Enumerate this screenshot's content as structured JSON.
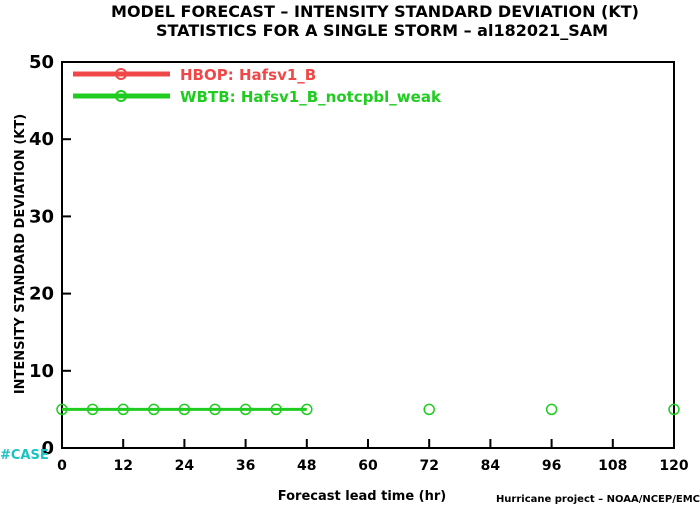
{
  "chart_data": {
    "type": "line",
    "title": "MODEL FORECAST – INTENSITY STANDARD DEVIATION (KT)",
    "subtitle": "STATISTICS FOR A SINGLE STORM – al182021_SAM",
    "xlabel": "Forecast lead time (hr)",
    "ylabel": "INTENSITY STANDARD DEVIATION (KT)",
    "xlim": [
      0,
      120
    ],
    "ylim": [
      0,
      50
    ],
    "x_ticks": [
      "0",
      "12",
      "24",
      "36",
      "48",
      "60",
      "72",
      "84",
      "96",
      "108",
      "120"
    ],
    "y_ticks": [
      "0",
      "10",
      "20",
      "30",
      "40",
      "50"
    ],
    "grid": false,
    "legend_position": "top-left",
    "series": [
      {
        "name": "HBOP: Hafsv1_B",
        "color": "#f04848",
        "x": [],
        "y": []
      },
      {
        "name": "WBTB: Hafsv1_B_notcpbl_weak",
        "color": "#1fcc1f",
        "x": [
          0,
          6,
          12,
          18,
          24,
          30,
          36,
          42,
          48,
          72,
          96,
          120
        ],
        "y": [
          5,
          5,
          5,
          5,
          5,
          5,
          5,
          5,
          5,
          5,
          5,
          5
        ],
        "connected_through_x": 48
      }
    ],
    "case_label": "#CASE",
    "credit": "Hurricane project – NOAA/NCEP/EMC"
  }
}
